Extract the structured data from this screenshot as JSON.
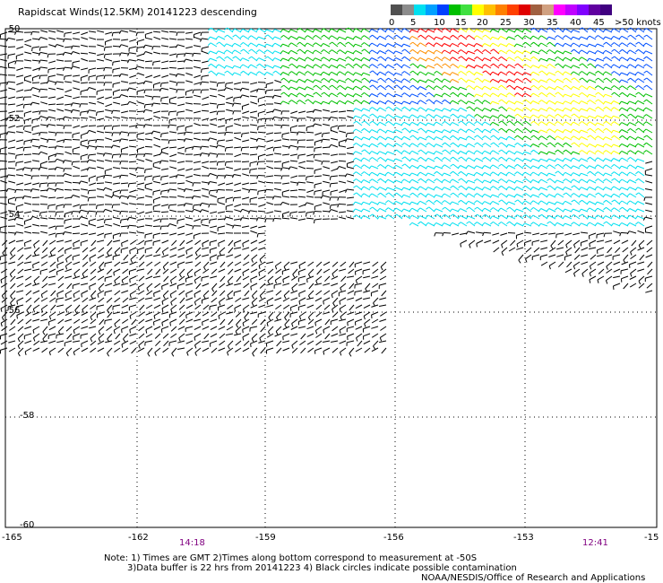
{
  "title": "Rapidscat Winds(12.5KM) 20141223 descending",
  "legend": {
    "labels": [
      "0",
      "5",
      "10",
      "15",
      "20",
      "25",
      "30",
      "35",
      "40",
      "45",
      ">50 knots"
    ],
    "colors": [
      "#505050",
      "#8c8c8c",
      "#00e0f0",
      "#00a0ff",
      "#0040ff",
      "#00c000",
      "#40e040",
      "#ffff00",
      "#ffc000",
      "#ff8000",
      "#ff4000",
      "#e00000",
      "#a06040",
      "#d0a080",
      "#ff00ff",
      "#c000ff",
      "#8000ff",
      "#6000a0",
      "#400080"
    ]
  },
  "chart_data": {
    "type": "map",
    "y_ticks": [
      "-50",
      "-52",
      "-54",
      "-56",
      "-58",
      "-60"
    ],
    "x_ticks": [
      "-165",
      "-162",
      "-159",
      "-156",
      "-153",
      "-15"
    ],
    "lat_range": [
      -60,
      -50
    ],
    "lon_range": [
      -165,
      -150
    ],
    "grid": "dotted",
    "wind_colors": {
      "black": "#000000",
      "cyan": "#00e0f0",
      "blue": "#0050ff",
      "green": "#00c000",
      "yellow": "#ffff00",
      "orange": "#ff9000",
      "red": "#ff0000"
    }
  },
  "times": [
    "14:18",
    "12:41"
  ],
  "notes": [
    "Note: 1) Times are GMT 2)Times along bottom correspond to measurement at -50S",
    "3)Data buffer is 22 hrs from 20141223 4) Black circles indicate possible contamination"
  ],
  "credit": "NOAA/NESDIS/Office of Research and Applications"
}
